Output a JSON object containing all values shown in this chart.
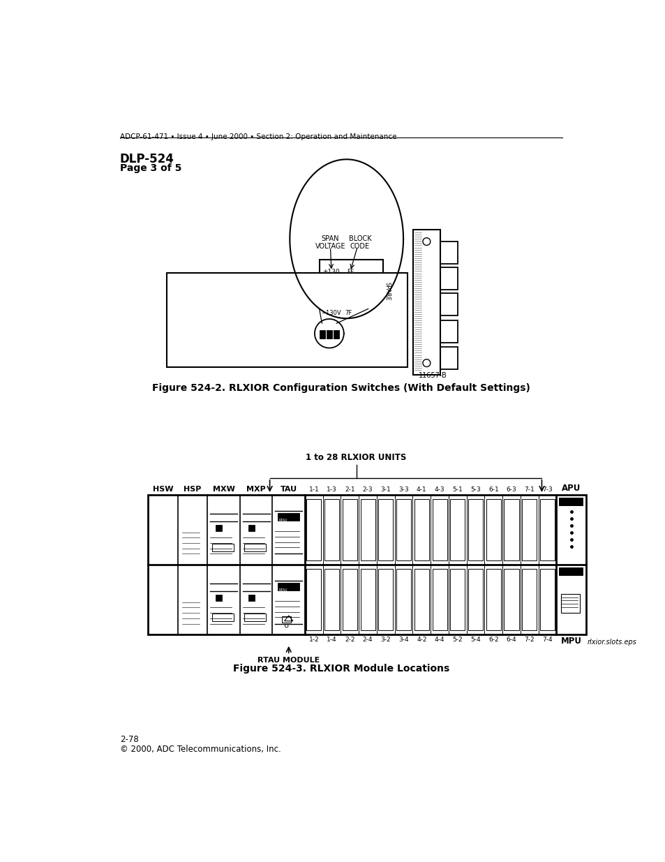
{
  "header_text": "ADCP-61-471 • Issue 4 • June 2000 • Section 2: Operation and Maintenance",
  "title_line1": "DLP-524",
  "title_line2": "Page 3 of 5",
  "fig2_caption": "Figure 524-2. RLXIOR Configuration Switches (With Default Settings)",
  "fig3_caption": "Figure 524-3. RLXIOR Module Locations",
  "fig2_id": "11657-B",
  "fig3_id": "rlxior.slots.eps",
  "span_voltage_label": "SPAN\nVOLTAGE",
  "block_code_label": "BLOCK\nCODE",
  "switch_top1": "±130",
  "switch_top2": "FF",
  "switch_bot1": "−130V",
  "switch_bot2": "7F",
  "spare_label": "SPARE",
  "arrow_label": "1 to 28 RLXIOR UNITS",
  "rtau_label": "RTAU MODULE",
  "left_labels": [
    "HSW",
    "HSP",
    "MXW",
    "MXP",
    "TAU"
  ],
  "top_slot_labels": [
    "1-1",
    "1-3",
    "2-1",
    "2-3",
    "3-1",
    "3-3",
    "4-1",
    "4-3",
    "5-1",
    "5-3",
    "6-1",
    "6-3",
    "7-1",
    "7-3"
  ],
  "bot_slot_labels": [
    "1-2",
    "1-4",
    "2-2",
    "2-4",
    "3-2",
    "3-4",
    "4-2",
    "4-4",
    "5-2",
    "5-4",
    "6-2",
    "6-4",
    "7-2",
    "7-4"
  ],
  "apu_label": "APU",
  "mpu_label": "MPU",
  "bg_color": "#ffffff",
  "line_color": "#000000",
  "font_color": "#000000"
}
